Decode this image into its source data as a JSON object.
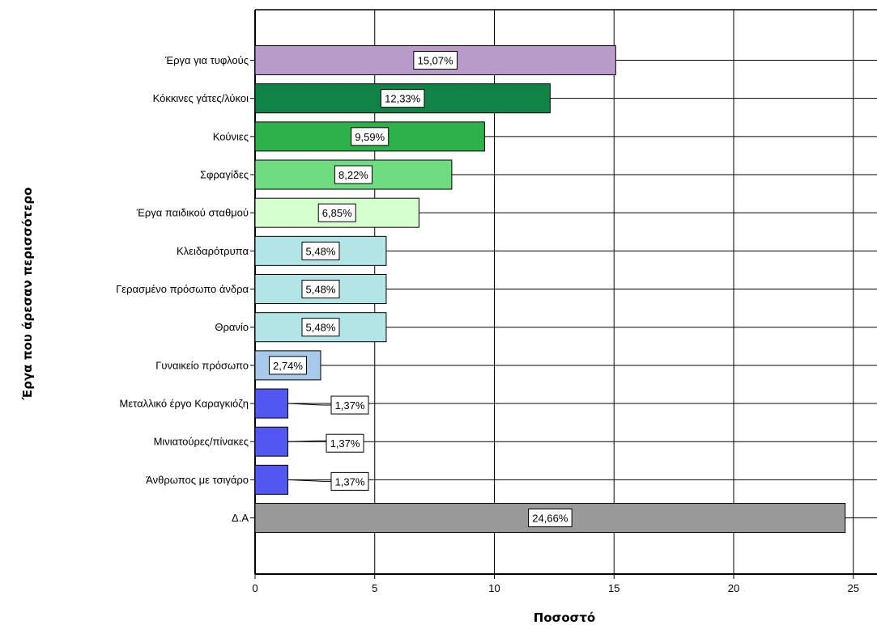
{
  "chart_data": {
    "type": "bar",
    "orientation": "horizontal",
    "xlabel": "Ποσοστό",
    "ylabel": "Έργα που άρεσαν περισσότερο",
    "xlim": [
      0,
      26
    ],
    "xticks": [
      0,
      5,
      10,
      15,
      20,
      25
    ],
    "grid": true,
    "categories": [
      "Έργα για τυφλούς",
      "Κόκκινες γάτες/λύκοι",
      "Κούνιες",
      "Σφραγίδες",
      "Έργα παιδικού σταθμού",
      "Κλειδαρότρυπα",
      "Γερασμένο πρόσωπο άνδρα",
      "Θρανίο",
      "Γυναικείο πρόσωπο",
      "Μεταλλικό έργο Καραγκιόζη",
      "Μινιατούρες/πίνακες",
      "Άνθρωπος με τσιγάρο",
      "Δ.Α"
    ],
    "values": [
      15.07,
      12.33,
      9.59,
      8.22,
      6.85,
      5.48,
      5.48,
      5.48,
      2.74,
      1.37,
      1.37,
      1.37,
      24.66
    ],
    "data_labels": [
      "15,07%",
      "12,33%",
      "9,59%",
      "8,22%",
      "6,85%",
      "5,48%",
      "5,48%",
      "5,48%",
      "2,74%",
      "1,37%",
      "1,37%",
      "1,37%",
      "24,66%"
    ],
    "colors": [
      "#b89bc9",
      "#0f8446",
      "#2eb14a",
      "#6fdc82",
      "#d6ffcf",
      "#b3e5e7",
      "#b3e5e7",
      "#b3e5e7",
      "#a8c9ea",
      "#5257f2",
      "#5257f2",
      "#5257f2",
      "#999999"
    ]
  }
}
